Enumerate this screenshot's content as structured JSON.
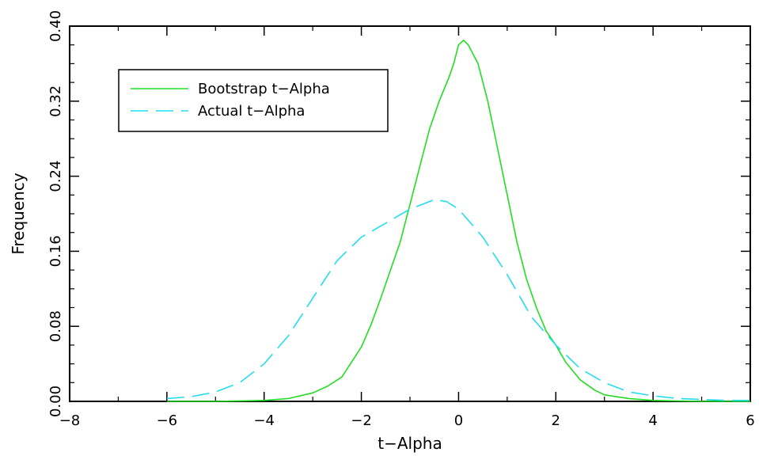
{
  "chart_data": {
    "type": "line",
    "title": "",
    "xlabel": "t−Alpha",
    "ylabel": "Frequency",
    "xlim": [
      -8,
      6
    ],
    "ylim": [
      0,
      0.4
    ],
    "x_ticks": [
      {
        "value": -8,
        "label": "−8"
      },
      {
        "value": -6,
        "label": "−6"
      },
      {
        "value": -4,
        "label": "−4"
      },
      {
        "value": -2,
        "label": "−2"
      },
      {
        "value": 0,
        "label": "0"
      },
      {
        "value": 2,
        "label": "2"
      },
      {
        "value": 4,
        "label": "4"
      },
      {
        "value": 6,
        "label": "6"
      }
    ],
    "y_ticks": [
      {
        "value": 0.0,
        "label": "0.00"
      },
      {
        "value": 0.08,
        "label": "0.08"
      },
      {
        "value": 0.16,
        "label": "0.16"
      },
      {
        "value": 0.24,
        "label": "0.24"
      },
      {
        "value": 0.32,
        "label": "0.32"
      },
      {
        "value": 0.4,
        "label": "0.40"
      }
    ],
    "grid": false,
    "legend_position": "top-left",
    "series": [
      {
        "name": "Bootstrap t−Alpha",
        "color": "#22dd22",
        "style": "solid",
        "x": [
          -6,
          -5,
          -4.5,
          -4,
          -3.5,
          -3,
          -2.7,
          -2.4,
          -2.2,
          -2,
          -1.8,
          -1.6,
          -1.4,
          -1.2,
          -1,
          -0.8,
          -0.6,
          -0.4,
          -0.2,
          -0.1,
          0,
          0.1,
          0.2,
          0.4,
          0.6,
          0.8,
          1,
          1.2,
          1.4,
          1.6,
          1.8,
          2,
          2.2,
          2.5,
          2.8,
          3,
          3.5,
          4,
          5,
          6
        ],
        "y": [
          0.0,
          0.0,
          0.0005,
          0.001,
          0.003,
          0.009,
          0.016,
          0.026,
          0.042,
          0.058,
          0.082,
          0.11,
          0.14,
          0.17,
          0.21,
          0.25,
          0.29,
          0.32,
          0.345,
          0.36,
          0.38,
          0.385,
          0.38,
          0.36,
          0.32,
          0.27,
          0.22,
          0.17,
          0.13,
          0.1,
          0.075,
          0.06,
          0.042,
          0.023,
          0.012,
          0.007,
          0.003,
          0.001,
          0.0,
          0.0
        ]
      },
      {
        "name": "Actual t−Alpha",
        "color": "#22ddee",
        "style": "dashed",
        "x": [
          -6,
          -5.5,
          -5,
          -4.5,
          -4,
          -3.5,
          -3,
          -2.5,
          -2,
          -1.5,
          -1,
          -0.75,
          -0.5,
          -0.25,
          0,
          0.5,
          1,
          1.5,
          2,
          2.5,
          3,
          3.5,
          4,
          4.5,
          5,
          5.5,
          6
        ],
        "y": [
          0.003,
          0.005,
          0.01,
          0.02,
          0.04,
          0.07,
          0.11,
          0.15,
          0.175,
          0.19,
          0.205,
          0.21,
          0.215,
          0.213,
          0.205,
          0.175,
          0.135,
          0.09,
          0.06,
          0.035,
          0.02,
          0.01,
          0.006,
          0.003,
          0.002,
          0.001,
          0.001
        ]
      }
    ]
  }
}
